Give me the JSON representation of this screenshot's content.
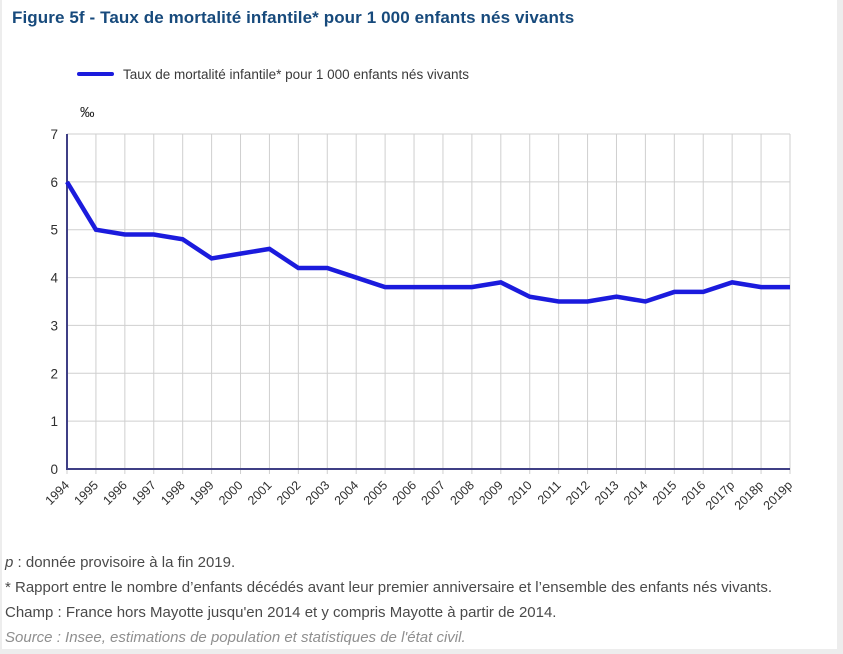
{
  "header": {
    "title": "Figure 5f - Taux de mortalité infantile* pour 1 000 enfants nés vivants"
  },
  "legend": {
    "label": "Taux de mortalité infantile* pour 1 000 enfants nés vivants"
  },
  "chart_data": {
    "type": "line",
    "title": "Figure 5f - Taux de mortalité infantile* pour 1 000 enfants nés vivants",
    "unit_label": "‰",
    "xlabel": "",
    "ylabel": "‰",
    "categories": [
      "1994",
      "1995",
      "1996",
      "1997",
      "1998",
      "1999",
      "2000",
      "2001",
      "2002",
      "2003",
      "2004",
      "2005",
      "2006",
      "2007",
      "2008",
      "2009",
      "2010",
      "2011",
      "2012",
      "2013",
      "2014",
      "2015",
      "2016",
      "2017p",
      "2018p",
      "2019p"
    ],
    "series": [
      {
        "name": "Taux de mortalité infantile* pour 1 000 enfants nés vivants",
        "color": "#1b1bdd",
        "values": [
          6.0,
          5.0,
          4.9,
          4.9,
          4.8,
          4.4,
          4.5,
          4.6,
          4.2,
          4.2,
          4.0,
          3.8,
          3.8,
          3.8,
          3.8,
          3.9,
          3.6,
          3.5,
          3.5,
          3.6,
          3.5,
          3.7,
          3.7,
          3.9,
          3.8,
          3.8
        ]
      }
    ],
    "ylim": [
      0,
      7
    ],
    "ytick_step": 1,
    "yticks": [
      0,
      1,
      2,
      3,
      4,
      5,
      6,
      7
    ],
    "grid": true,
    "legend_position": "top",
    "colors": {
      "axis": "#3f3f85",
      "grid": "#cfcfcf",
      "tick_label": "#303030",
      "line": "#1b1bdd"
    }
  },
  "footer": {
    "p_note_prefix": "p",
    "p_note_text": " : donnée provisoire à la fin 2019.",
    "definition": "* Rapport entre le nombre d’enfants décédés avant leur premier anniversaire et l’ensemble des enfants nés vivants.",
    "champ": "Champ : France hors Mayotte jusqu'en 2014 et y compris Mayotte à partir de 2014.",
    "source": "Source : Insee, estimations de population et statistiques de l'état civil."
  }
}
